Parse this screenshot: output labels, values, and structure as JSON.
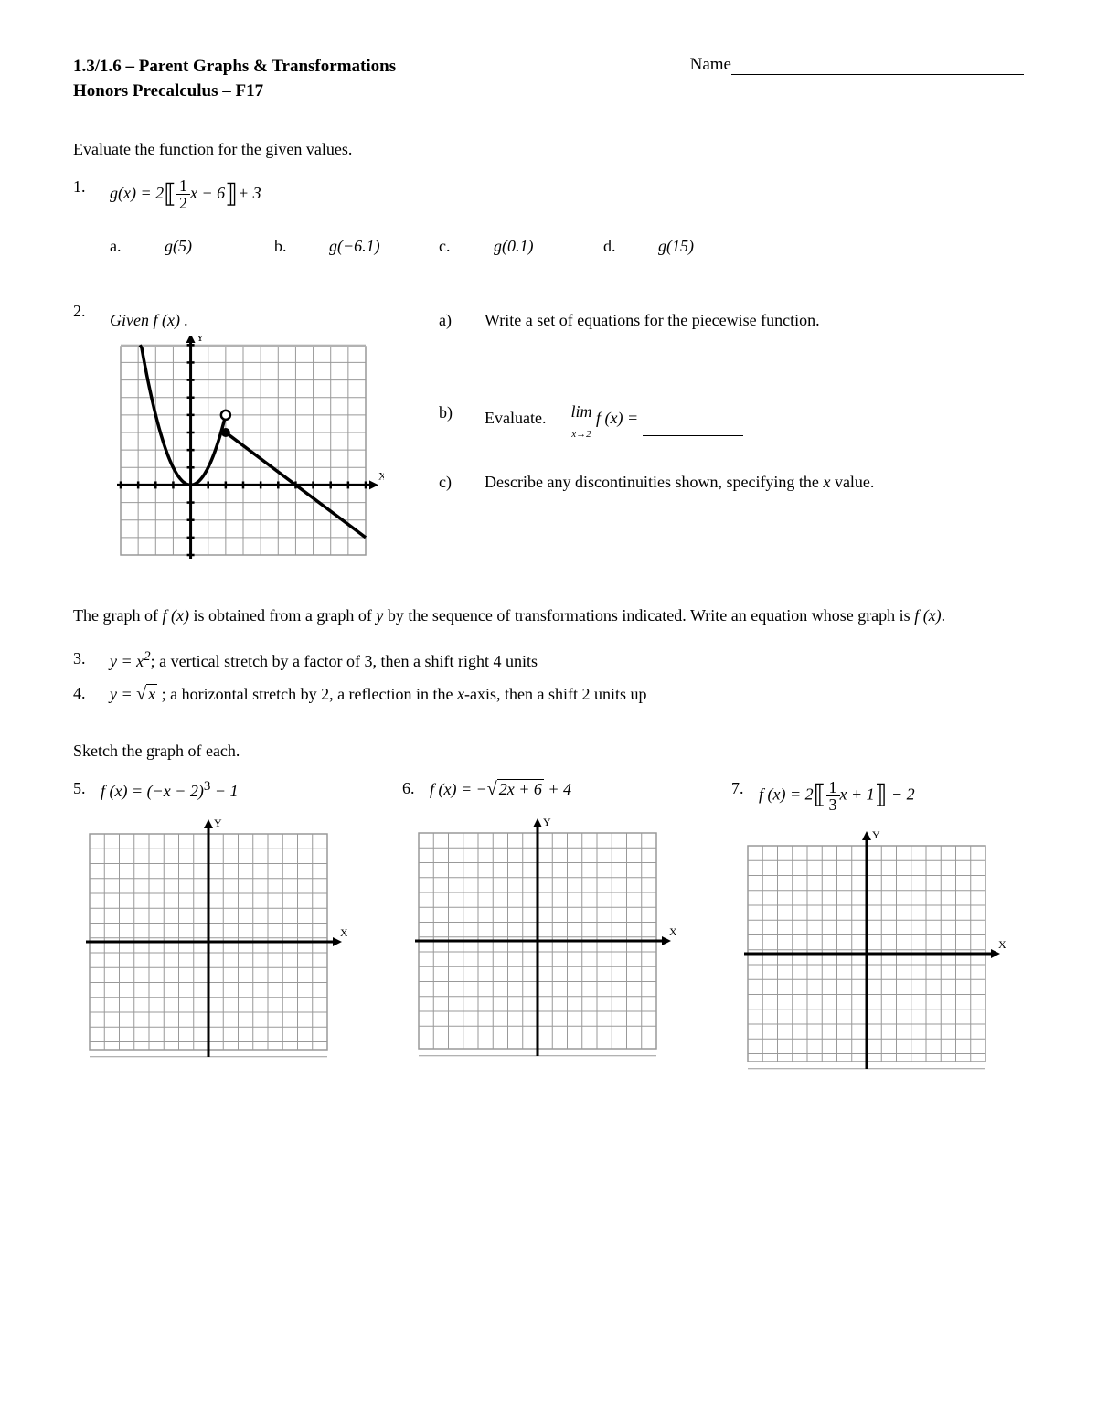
{
  "header": {
    "title_line1": "1.3/1.6 – Parent Graphs & Transformations",
    "title_line2": "Honors Precalculus – F17",
    "name_label": "Name"
  },
  "instruction1": "Evaluate the function for the given values.",
  "q1": {
    "num": "1.",
    "fn_lhs": "g(x) = 2",
    "frac_num": "1",
    "frac_den": "2",
    "inner": "x − 6",
    "tail": "+ 3",
    "subs": [
      {
        "label": "a.",
        "expr": "g(5)"
      },
      {
        "label": "b.",
        "expr": "g(−6.1)"
      },
      {
        "label": "c.",
        "expr": "g(0.1)"
      },
      {
        "label": "d.",
        "expr": "g(15)"
      }
    ]
  },
  "q2": {
    "num": "2.",
    "given": "Given  f (x) .",
    "a_label": "a)",
    "a_text": "Write a set of equations for the piecewise function.",
    "b_label": "b)",
    "b_text": "Evaluate.",
    "b_lim_pre": "lim",
    "b_lim_sub": "x→2",
    "b_lim_fn": " f (x) = ",
    "c_label": "c)",
    "c_text1": "Describe any discontinuities shown, specifying the ",
    "c_text2": " value.",
    "c_ital": "x",
    "graph": {
      "xmin": -4,
      "xmax": 10,
      "ymin": -4,
      "ymax": 8,
      "parabola_vertex": [
        0,
        0
      ],
      "parabola_xrange": [
        -3,
        2
      ],
      "open_circle": [
        2,
        4
      ],
      "closed_circle": [
        2,
        3
      ],
      "line_end": [
        10,
        -3
      ],
      "grid_color": "#999999",
      "axis_color": "#000000",
      "curve_color": "#000000"
    }
  },
  "transform_intro1": "The graph of ",
  "transform_intro_fx": "f (x)",
  "transform_intro2": " is obtained from a graph of ",
  "transform_intro_y": "y",
  "transform_intro3": " by the sequence of transformations indicated.  Write an equation whose graph is ",
  "transform_intro_fx2": "f (x)",
  "transform_intro4": ".",
  "q3": {
    "num": "3.",
    "eq": "y = x",
    "sup": "2",
    "text": "; a vertical stretch by a factor of 3, then a shift right 4 units"
  },
  "q4": {
    "num": "4.",
    "eq_pre": "y = ",
    "eq_rad": "x",
    "text": " ; a horizontal stretch by 2, a reflection in the ",
    "ital": "x",
    "text2": "-axis, then a shift 2 units up"
  },
  "sketch_instruction": "Sketch the graph of each.",
  "q5": {
    "num": "5.",
    "eq": "f (x) = (−x − 2)",
    "sup": "3",
    "tail": " − 1"
  },
  "q6": {
    "num": "6.",
    "eq_pre": "f (x) = −",
    "eq_rad": "2x + 6",
    "tail": " + 4"
  },
  "q7": {
    "num": "7.",
    "eq_pre": "f (x) = 2",
    "frac_num": "1",
    "frac_den": "3",
    "inner": "x + 1",
    "tail": " − 2"
  },
  "blank_grid": {
    "range": 8,
    "grid_color": "#999999",
    "axis_color": "#000000"
  },
  "colors": {
    "background": "#ffffff",
    "text": "#000000"
  }
}
